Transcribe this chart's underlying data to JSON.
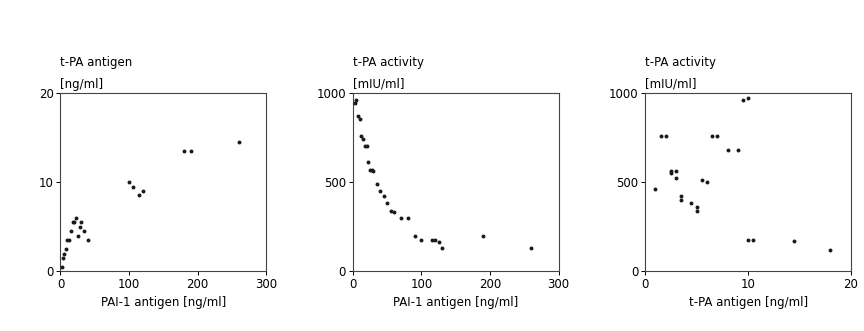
{
  "plot1": {
    "title1": "t-PA antigen",
    "title2": "[ng/ml]",
    "xlabel": "PAI-1 antigen [ng/ml]",
    "xlim": [
      0,
      300
    ],
    "ylim": [
      0,
      20
    ],
    "xticks": [
      0,
      100,
      200,
      300
    ],
    "yticks": [
      0,
      10,
      20
    ],
    "x": [
      2,
      3,
      5,
      8,
      10,
      12,
      15,
      18,
      20,
      22,
      25,
      28,
      30,
      35,
      40,
      100,
      105,
      115,
      120,
      180,
      190,
      260
    ],
    "y": [
      0.5,
      1.5,
      2.0,
      2.5,
      3.5,
      3.5,
      4.5,
      5.5,
      5.5,
      6.0,
      4.0,
      5.0,
      5.5,
      4.5,
      3.5,
      10.0,
      9.5,
      8.5,
      9.0,
      13.5,
      13.5,
      14.5
    ]
  },
  "plot2": {
    "title1": "t-PA activity",
    "title2": "[mIU/ml]",
    "xlabel": "PAI-1 antigen [ng/ml]",
    "xlim": [
      0,
      300
    ],
    "ylim": [
      0,
      1000
    ],
    "xticks": [
      0,
      100,
      200,
      300
    ],
    "yticks": [
      0,
      500,
      1000
    ],
    "x": [
      3,
      5,
      8,
      10,
      12,
      15,
      18,
      20,
      22,
      25,
      28,
      30,
      35,
      40,
      45,
      50,
      55,
      60,
      70,
      80,
      90,
      100,
      115,
      120,
      125,
      130,
      190,
      260
    ],
    "y": [
      940,
      960,
      870,
      850,
      760,
      740,
      700,
      700,
      610,
      570,
      570,
      560,
      490,
      450,
      420,
      380,
      340,
      330,
      300,
      300,
      200,
      175,
      175,
      175,
      165,
      130,
      200,
      130
    ]
  },
  "plot3": {
    "title1": "t-PA activity",
    "title2": "[mIU/ml]",
    "xlabel": "t-PA antigen [ng/ml]",
    "xlim": [
      0,
      20
    ],
    "ylim": [
      0,
      1000
    ],
    "xticks": [
      0,
      10,
      20
    ],
    "yticks": [
      0,
      500,
      1000
    ],
    "x": [
      1.0,
      1.5,
      2.0,
      2.5,
      2.5,
      3.0,
      3.0,
      3.5,
      3.5,
      4.5,
      5.0,
      5.0,
      5.5,
      6.0,
      6.5,
      7.0,
      8.0,
      9.0,
      9.5,
      10.0,
      10.0,
      10.5,
      14.5,
      18.0
    ],
    "y": [
      460,
      760,
      760,
      550,
      560,
      560,
      520,
      420,
      400,
      380,
      360,
      340,
      510,
      500,
      760,
      760,
      680,
      680,
      960,
      970,
      175,
      175,
      170,
      120
    ]
  },
  "dot_color": "#1a1a1a",
  "dot_size": 8,
  "bg_color": "#ffffff",
  "border_color": "#444444",
  "font_size": 8.5,
  "tick_font_size": 8.5
}
